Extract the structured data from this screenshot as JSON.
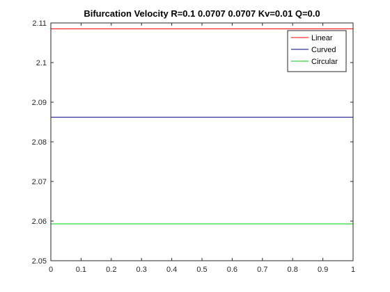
{
  "chart_data": {
    "type": "line",
    "title": "Bifurcation Velocity R=0.1 0.0707 0.0707 Kv=0.01 Q=0.0",
    "xlabel": "",
    "ylabel": "",
    "xlim": [
      0,
      1
    ],
    "ylim": [
      2.05,
      2.11
    ],
    "x_ticks": [
      "0",
      "0.1",
      "0.2",
      "0.3",
      "0.4",
      "0.5",
      "0.6",
      "0.7",
      "0.8",
      "0.9",
      "1"
    ],
    "y_ticks": [
      "2.05",
      "2.06",
      "2.07",
      "2.08",
      "2.09",
      "2.1",
      "2.11"
    ],
    "grid": false,
    "legend_position": "top-right",
    "series": [
      {
        "name": "Linear",
        "color": "#ff0000",
        "x": [
          0,
          1
        ],
        "y": [
          2.1085,
          2.1085
        ]
      },
      {
        "name": "Curved",
        "color": "#000080",
        "x": [
          0,
          1
        ],
        "y": [
          2.0862,
          2.0862
        ]
      },
      {
        "name": "Circular",
        "color": "#00cc00",
        "x": [
          0,
          1
        ],
        "y": [
          2.0593,
          2.0593
        ]
      }
    ]
  }
}
